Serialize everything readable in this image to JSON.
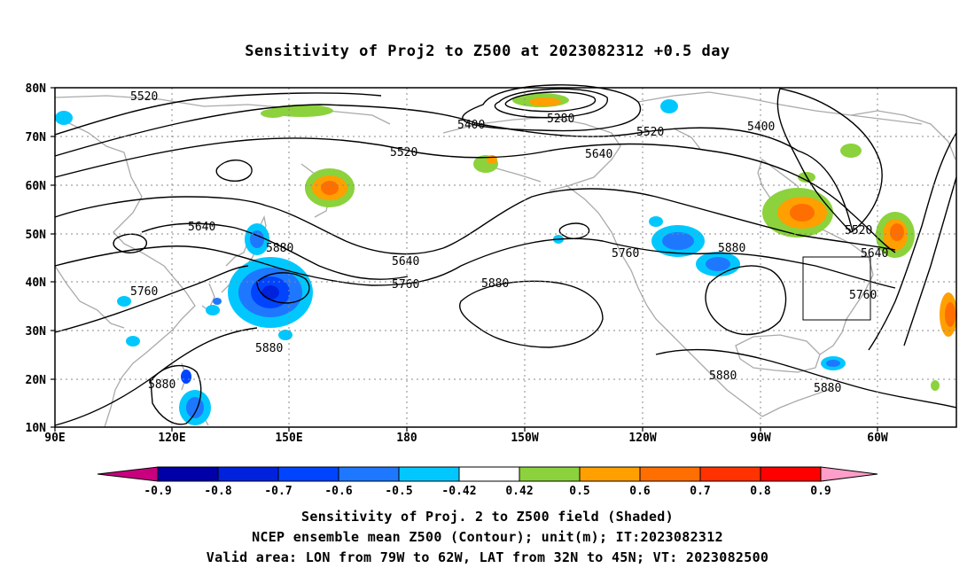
{
  "title": "Sensitivity of Proj2 to Z500 at 2023082312 +0.5 day",
  "lat_labels": [
    "80N",
    "70N",
    "60N",
    "50N",
    "40N",
    "30N",
    "20N",
    "10N"
  ],
  "lon_labels": [
    "90E",
    "120E",
    "150E",
    "180",
    "150W",
    "120W",
    "90W",
    "60W"
  ],
  "colorbar": {
    "labels": [
      "-0.9",
      "-0.8",
      "-0.7",
      "-0.6",
      "-0.5",
      "-0.42",
      "0.42",
      "0.5",
      "0.6",
      "0.7",
      "0.8",
      "0.9"
    ],
    "colors": [
      "#c8007e",
      "#0000a8",
      "#0022dd",
      "#0044ff",
      "#1e78ff",
      "#00c8ff",
      "#ffffff",
      "#8cd23c",
      "#ffa000",
      "#ff6e00",
      "#ff3200",
      "#ff0000",
      "#ff9ec8"
    ]
  },
  "contour_labels": [
    "5520",
    "5280",
    "5400",
    "5520",
    "5400",
    "5520",
    "5640",
    "5640",
    "5880",
    "5640",
    "5760",
    "5880",
    "5760",
    "5880",
    "5520",
    "5640",
    "5760",
    "5760",
    "5880",
    "5880",
    "5880"
  ],
  "captions": {
    "line1": "Sensitivity of Proj. 2 to Z500 field (Shaded)",
    "line2": "NCEP ensemble mean Z500 (Contour); unit(m); IT:2023082312",
    "line3": "Valid area: LON from 79W to 62W, LAT from 32N to 45N; VT: 2023082500"
  }
}
